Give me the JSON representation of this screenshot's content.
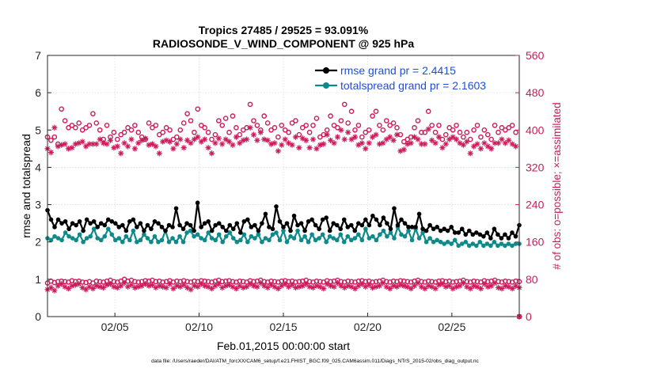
{
  "chart_data": {
    "type": "line",
    "title": "Tropics 27485 / 29525 = 93.091%",
    "subtitle": "RADIOSONDE_V_WIND_COMPONENT @ 925 hPa",
    "xlabel": "Feb.01,2015 00:00:00 start",
    "ylabel": "rmse and totalspread",
    "ylabel_right": "# of obs: o=possible; ×=assimilated",
    "footer": "data file: /Users/raeder/DAI/ATM_forcXX/CAM6_setup/f.e21.FHIST_BGC.f09_025.CAM6assim.011/Diags_NTrS_2015-02/obs_diag_output.nc",
    "xlim": [
      1,
      29
    ],
    "ylim": [
      0,
      7
    ],
    "ylim_right": [
      0,
      560
    ],
    "xticks": [
      5,
      10,
      15,
      20,
      25
    ],
    "xtick_labels": [
      "02/05",
      "02/10",
      "02/15",
      "02/20",
      "02/25"
    ],
    "yticks": [
      0,
      1,
      2,
      3,
      4,
      5,
      6,
      7
    ],
    "yticks_right": [
      0,
      80,
      160,
      240,
      320,
      400,
      480,
      560
    ],
    "legend": [
      "rmse grand pr = 2.4415",
      "totalspread grand pr = 2.1603"
    ],
    "colors": {
      "rmse": "#000000",
      "spread": "#0f8a8a",
      "obs": "#cc1a5a"
    },
    "series": [
      {
        "name": "rmse",
        "values": [
          2.85,
          2.6,
          2.4,
          2.6,
          2.5,
          2.55,
          2.35,
          2.5,
          2.45,
          2.55,
          2.3,
          2.6,
          2.5,
          2.55,
          2.4,
          2.5,
          2.45,
          2.6,
          2.55,
          2.5,
          2.4,
          2.45,
          2.3,
          2.55,
          2.6,
          2.4,
          2.5,
          2.3,
          2.45,
          2.35,
          2.55,
          2.5,
          2.4,
          2.3,
          2.45,
          2.4,
          2.9,
          2.45,
          2.35,
          2.5,
          2.45,
          2.3,
          3.05,
          2.4,
          2.5,
          2.55,
          2.3,
          2.45,
          2.5,
          2.4,
          2.3,
          2.45,
          2.35,
          2.5,
          2.25,
          2.55,
          2.6,
          2.4,
          2.45,
          2.3,
          2.5,
          2.75,
          2.4,
          2.35,
          2.95,
          2.55,
          2.4,
          2.5,
          2.3,
          2.7,
          2.45,
          2.5,
          2.3,
          2.55,
          2.6,
          2.45,
          2.35,
          2.6,
          2.65,
          2.3,
          2.5,
          2.45,
          2.35,
          2.6,
          2.4,
          2.45,
          2.3,
          2.5,
          2.45,
          2.6,
          2.45,
          2.7,
          2.6,
          2.45,
          2.65,
          2.5,
          2.35,
          2.9,
          2.45,
          2.6,
          2.5,
          2.4,
          2.4,
          2.4,
          2.75,
          2.35,
          2.3,
          2.45,
          2.35,
          2.4,
          2.3,
          2.35,
          2.3,
          2.4,
          2.25,
          2.25,
          2.35,
          2.2,
          2.3,
          2.2,
          2.25,
          2.2,
          2.15,
          2.25,
          2.1,
          2.35,
          2.2,
          2.1,
          2.2,
          2.1,
          2.25,
          2.15,
          2.45
        ]
      },
      {
        "name": "totalspread",
        "values": [
          2.1,
          2.05,
          2.15,
          2.1,
          2.05,
          2.25,
          2.15,
          2.1,
          2.05,
          2.2,
          2.0,
          2.1,
          2.15,
          2.35,
          2.1,
          2.05,
          2.15,
          2.35,
          2.2,
          2.05,
          2.1,
          2.0,
          2.15,
          2.05,
          2.3,
          2.0,
          2.05,
          2.2,
          2.1,
          2.0,
          2.15,
          2.0,
          2.05,
          2.3,
          2.0,
          2.1,
          2.0,
          2.15,
          2.0,
          2.25,
          2.3,
          2.15,
          2.2,
          2.1,
          2.05,
          2.25,
          2.1,
          2.05,
          2.2,
          2.0,
          2.15,
          2.25,
          2.1,
          2.0,
          2.05,
          2.2,
          2.0,
          2.15,
          2.1,
          2.2,
          2.0,
          2.1,
          2.05,
          2.2,
          2.25,
          2.05,
          2.3,
          2.0,
          2.15,
          2.1,
          2.3,
          2.05,
          2.15,
          2.0,
          2.2,
          2.05,
          2.1,
          2.2,
          2.0,
          2.15,
          2.1,
          2.05,
          2.2,
          2.0,
          2.15,
          2.05,
          2.1,
          2.2,
          2.05,
          2.35,
          2.1,
          2.15,
          2.05,
          2.2,
          2.3,
          2.15,
          2.25,
          2.1,
          2.4,
          2.2,
          2.15,
          2.3,
          2.05,
          2.35,
          2.1,
          2.25,
          2.0,
          2.1,
          2.0,
          2.05,
          2.0,
          1.95,
          2.0,
          1.95,
          2.05,
          1.9,
          1.95,
          2.0,
          1.9,
          1.95,
          1.9,
          2.0,
          1.9,
          1.95,
          1.9,
          2.0,
          1.9,
          1.95,
          1.9,
          1.95,
          1.9,
          1.95,
          1.95
        ]
      },
      {
        "name": "obs possible",
        "values": [
          385,
          378,
          385,
          370,
          445,
          420,
          405,
          410,
          405,
          415,
          400,
          405,
          410,
          435,
          415,
          400,
          380,
          410,
          385,
          395,
          380,
          390,
          395,
          405,
          400,
          410,
          395,
          385,
          380,
          415,
          405,
          410,
          390,
          395,
          405,
          400,
          380,
          385,
          400,
          415,
          435,
          420,
          395,
          445,
          410,
          405,
          395,
          380,
          390,
          420,
          410,
          425,
          395,
          430,
          405,
          390,
          400,
          405,
          455,
          420,
          410,
          400,
          430,
          415,
          400,
          405,
          385,
          410,
          400,
          395,
          415,
          420,
          390,
          405,
          410,
          395,
          410,
          425,
          385,
          390,
          400,
          430,
          410,
          405,
          420,
          455,
          415,
          440,
          400,
          410,
          385,
          395,
          400,
          430,
          440,
          410,
          400,
          420,
          410,
          415,
          405,
          390,
          375,
          380,
          385,
          405,
          420,
          395,
          395,
          440,
          410,
          395,
          410,
          380,
          390,
          405,
          400,
          410,
          395,
          385,
          395,
          380,
          400,
          410,
          385,
          400,
          390,
          380,
          410,
          395,
          405,
          400,
          405,
          410,
          395,
          0
        ]
      },
      {
        "name": "obs assimilated",
        "values": [
          360,
          352,
          405,
          365,
          368,
          370,
          360,
          362,
          370,
          372,
          375,
          365,
          370,
          370,
          370,
          380,
          372,
          370,
          378,
          362,
          365,
          350,
          372,
          365,
          380,
          360,
          372,
          378,
          382,
          368,
          370,
          365,
          350,
          375,
          378,
          375,
          360,
          370,
          380,
          362,
          378,
          372,
          380,
          385,
          375,
          380,
          362,
          350,
          372,
          382,
          370,
          380,
          375,
          368,
          385,
          372,
          378,
          380,
          405,
          390,
          378,
          395,
          380,
          378,
          370,
          372,
          355,
          368,
          380,
          372,
          368,
          385,
          362,
          382,
          378,
          362,
          380,
          360,
          368,
          370,
          390,
          378,
          372,
          385,
          400,
          380,
          395,
          380,
          385,
          368,
          372,
          360,
          372,
          385,
          390,
          370,
          372,
          380,
          385,
          378,
          390,
          355,
          358,
          370,
          372,
          385,
          380,
          370,
          370,
          402,
          378,
          372,
          385,
          362,
          370,
          380,
          385,
          380,
          372,
          368,
          375,
          350,
          365,
          370,
          360,
          372,
          365,
          360,
          372,
          372,
          380,
          372,
          378,
          370,
          365,
          0
        ]
      },
      {
        "name": "obs low possible",
        "values": [
          72,
          76,
          73,
          75,
          76,
          75,
          74,
          77,
          75,
          76,
          74,
          73,
          75,
          72,
          76,
          75,
          74,
          76,
          78,
          75,
          74,
          76,
          80,
          76,
          78,
          75,
          74,
          75,
          77,
          76,
          78,
          75,
          76,
          74,
          75,
          77,
          74,
          76,
          75,
          77,
          75,
          74,
          76,
          75,
          77,
          76,
          75,
          74,
          76,
          78,
          75,
          76,
          77,
          75,
          74,
          76,
          75,
          74,
          77,
          75,
          76,
          78,
          75,
          74,
          76,
          75,
          74,
          76,
          77,
          75,
          76,
          74,
          75,
          76,
          78,
          75,
          74,
          76,
          75,
          74,
          77,
          75,
          76,
          78,
          75,
          74,
          76,
          75,
          74,
          76,
          77,
          75,
          76,
          74,
          75,
          76,
          78,
          75,
          74,
          76,
          75,
          77,
          76,
          75,
          74,
          76,
          78,
          75,
          74,
          76,
          75,
          74,
          76,
          77,
          75,
          76,
          74,
          75,
          76,
          78,
          75,
          74,
          76,
          75,
          74,
          77,
          75,
          76,
          78,
          75,
          74,
          76,
          75,
          74,
          76,
          75
        ]
      },
      {
        "name": "obs low assimilated",
        "values": [
          58,
          62,
          56,
          66,
          70,
          64,
          60,
          66,
          68,
          70,
          62,
          58,
          64,
          60,
          66,
          64,
          62,
          68,
          70,
          64,
          62,
          66,
          72,
          64,
          68,
          62,
          64,
          66,
          70,
          66,
          68,
          62,
          66,
          64,
          62,
          70,
          60,
          66,
          64,
          68,
          62,
          58,
          66,
          64,
          70,
          66,
          64,
          60,
          66,
          70,
          62,
          66,
          68,
          64,
          60,
          66,
          62,
          64,
          70,
          66,
          64,
          72,
          66,
          62,
          68,
          64,
          60,
          66,
          70,
          64,
          68,
          62,
          64,
          66,
          70,
          64,
          62,
          66,
          64,
          60,
          70,
          66,
          64,
          72,
          66,
          62,
          66,
          64,
          60,
          66,
          70,
          64,
          68,
          62,
          64,
          66,
          72,
          64,
          60,
          66,
          64,
          68,
          66,
          64,
          60,
          66,
          72,
          64,
          60,
          66,
          64,
          60,
          68,
          70,
          64,
          66,
          60,
          64,
          66,
          72,
          64,
          60,
          66,
          64,
          60,
          70,
          64,
          66,
          72,
          62,
          60,
          66,
          64,
          60,
          66,
          62
        ]
      }
    ]
  }
}
